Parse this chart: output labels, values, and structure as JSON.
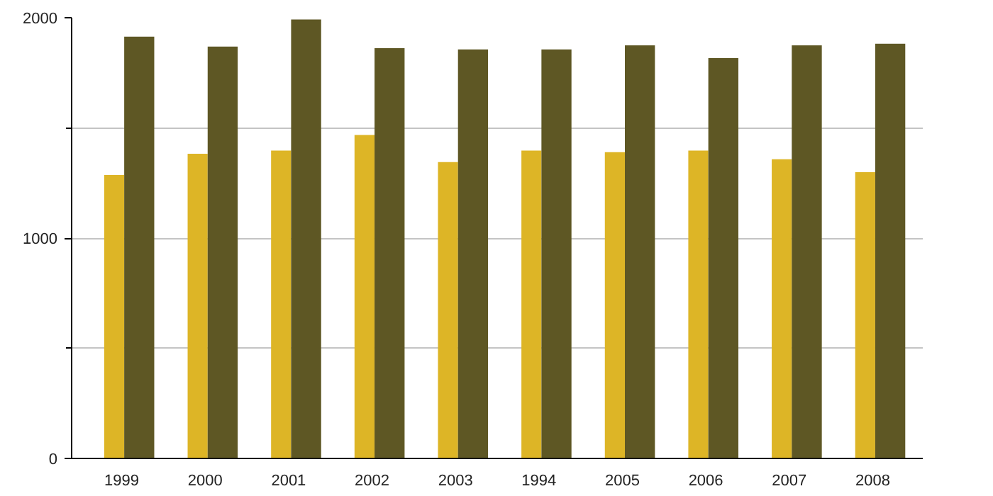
{
  "chart_data": {
    "type": "bar",
    "categories": [
      "1999",
      "2000",
      "2001",
      "2002",
      "2003",
      "1994",
      "2005",
      "2006",
      "2007",
      "2008"
    ],
    "series": [
      {
        "color": "#ddb526",
        "values": [
          1286,
          1383,
          1397,
          1468,
          1345,
          1397,
          1390,
          1397,
          1358,
          1299
        ]
      },
      {
        "color": "#5e5724",
        "values": [
          1914,
          1869,
          1992,
          1862,
          1856,
          1856,
          1875,
          1817,
          1875,
          1882
        ]
      }
    ],
    "ylim": [
      0,
      2000
    ],
    "yticks": [
      0,
      {
        "value": 500,
        "label": null
      },
      1000,
      {
        "value": 1500,
        "label": null
      },
      2000
    ],
    "grid": "y"
  }
}
